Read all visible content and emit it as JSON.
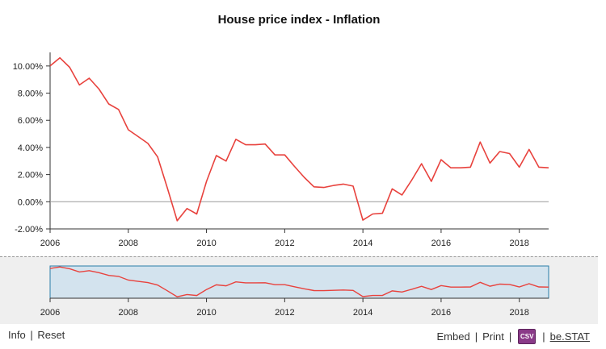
{
  "chart_data": {
    "type": "line",
    "title": "House price index - Inflation",
    "xlabel": "",
    "ylabel": "",
    "x_tick_labels": [
      "2006",
      "2008",
      "2010",
      "2012",
      "2014",
      "2016",
      "2018"
    ],
    "x_ticks": [
      2006,
      2008,
      2010,
      2012,
      2014,
      2016,
      2018
    ],
    "y_tick_labels": [
      "-2.00%",
      "0.00%",
      "2.00%",
      "4.00%",
      "6.00%",
      "8.00%",
      "10.00%"
    ],
    "y_ticks": [
      -2,
      0,
      2,
      4,
      6,
      8,
      10
    ],
    "xlim": [
      2006,
      2018.75
    ],
    "ylim": [
      -2,
      11
    ],
    "grid": false,
    "series": [
      {
        "color": "#e8423d",
        "x": [
          2006,
          2006.25,
          2006.5,
          2006.75,
          2007,
          2007.25,
          2007.5,
          2007.75,
          2008,
          2008.25,
          2008.5,
          2008.75,
          2009,
          2009.25,
          2009.5,
          2009.75,
          2010,
          2010.25,
          2010.5,
          2010.75,
          2011,
          2011.25,
          2011.5,
          2011.75,
          2012,
          2012.25,
          2012.5,
          2012.75,
          2013,
          2013.25,
          2013.5,
          2013.75,
          2014,
          2014.25,
          2014.5,
          2014.75,
          2015,
          2015.25,
          2015.5,
          2015.75,
          2016,
          2016.25,
          2016.5,
          2016.75,
          2017,
          2017.25,
          2017.5,
          2017.75,
          2018,
          2018.25,
          2018.5,
          2018.75
        ],
        "y": [
          10.0,
          10.6,
          9.9,
          8.6,
          9.1,
          8.3,
          7.2,
          6.8,
          5.3,
          4.8,
          4.3,
          3.3,
          1.0,
          -1.4,
          -0.5,
          -0.9,
          1.5,
          3.4,
          3.0,
          4.6,
          4.2,
          4.2,
          4.25,
          3.45,
          3.45,
          2.6,
          1.8,
          1.1,
          1.05,
          1.2,
          1.3,
          1.15,
          -1.35,
          -0.9,
          -0.85,
          0.95,
          0.5,
          1.6,
          2.8,
          1.5,
          3.1,
          2.5,
          2.5,
          2.55,
          4.4,
          2.85,
          3.7,
          3.55,
          2.55,
          3.85,
          2.55,
          2.5
        ]
      }
    ]
  },
  "footer": {
    "info": "Info",
    "reset": "Reset",
    "embed": "Embed",
    "print": "Print",
    "csv_icon_text": "CSV",
    "bestat": "be.STAT",
    "sep": "|"
  }
}
